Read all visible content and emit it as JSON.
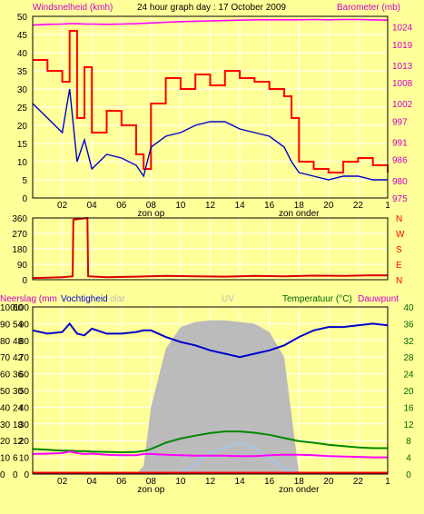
{
  "title": "24 hour graph day : 17 October 2009",
  "colors": {
    "background": "#ffff99",
    "grid": "#ffffff",
    "wind": "#ff0000",
    "wind_lower": "#0000cc",
    "barometer": "#ff00ff",
    "direction": "#dd0000",
    "rain": "#ff0000",
    "humidity": "#0000cc",
    "solar_uv": "#bbbbbb",
    "temperature": "#008800",
    "dewpoint": "#ff00ff",
    "uv": "#99ccff",
    "axis_text": "#000000",
    "green_text": "#006600",
    "magenta_text": "#cc00cc"
  },
  "x_ticks": [
    "02",
    "04",
    "06",
    "08",
    "10",
    "12",
    "14",
    "16",
    "18",
    "20",
    "22",
    "1"
  ],
  "zon_op_label": "zon op",
  "zon_onder_label": "zon onder",
  "chart_data": [
    {
      "type": "line",
      "name": "wind-barometer",
      "ylabel_left": "Windsnelheid (kmh)",
      "ylabel_right": "Barometer (mb)",
      "left_ticks": [
        "0",
        "5",
        "10",
        "15",
        "20",
        "25",
        "30",
        "35",
        "40",
        "45",
        "50"
      ],
      "right_ticks": [
        "975",
        "980",
        "986",
        "991",
        "997",
        "1002",
        "1008",
        "1013",
        "1019",
        "1024"
      ],
      "ylim_left": [
        0,
        50
      ],
      "ylim_right": [
        975,
        1027
      ],
      "x": [
        0,
        1,
        2,
        2.5,
        3,
        3.5,
        4,
        5,
        6,
        7,
        7.5,
        8,
        9,
        10,
        11,
        12,
        13,
        14,
        15,
        16,
        17,
        17.5,
        18,
        19,
        20,
        21,
        22,
        23,
        24
      ],
      "series": [
        {
          "name": "Windsnelheid (kmh)",
          "values": [
            38,
            35,
            32,
            46,
            22,
            36,
            18,
            24,
            20,
            12,
            8,
            26,
            33,
            30,
            34,
            31,
            35,
            33,
            32,
            30,
            28,
            22,
            10,
            8,
            7,
            10,
            11,
            9,
            7
          ]
        },
        {
          "name": "",
          "values": [
            26,
            22,
            18,
            30,
            10,
            16,
            8,
            12,
            11,
            9,
            6,
            14,
            17,
            18,
            20,
            21,
            21,
            19,
            18,
            17,
            14,
            10,
            7,
            6,
            5,
            6,
            6,
            5,
            5
          ]
        },
        {
          "name": "Barometer (mb)",
          "values": [
            1024.5,
            1024.7,
            1024.8,
            1024.9,
            1024.9,
            1024.8,
            1024.8,
            1024.7,
            1024.8,
            1024.9,
            1025.0,
            1025.1,
            1025.3,
            1025.5,
            1025.6,
            1025.7,
            1025.8,
            1025.9,
            1026.0,
            1026.0,
            1026.0,
            1026.0,
            1026.0,
            1026.1,
            1026.0,
            1026.1,
            1026.1,
            1026.0,
            1025.9
          ]
        }
      ]
    },
    {
      "type": "line",
      "name": "wind-direction",
      "left_ticks": [
        "0",
        "90",
        "180",
        "270",
        "360"
      ],
      "right_ticks": [
        "N",
        "E",
        "S",
        "W",
        "N"
      ],
      "ylim": [
        0,
        360
      ],
      "x": [
        0,
        1,
        2,
        2.7,
        2.75,
        3.7,
        3.75,
        5,
        7,
        9,
        11,
        13,
        15,
        17,
        19,
        21,
        23,
        24
      ],
      "values": [
        10,
        12,
        15,
        20,
        350,
        360,
        20,
        15,
        18,
        22,
        20,
        18,
        22,
        20,
        24,
        22,
        26,
        25
      ]
    },
    {
      "type": "line",
      "name": "rain-humidity-temperature",
      "ylabel_left": "Neerslag (mm",
      "ylabel_left2": "Vochtigheid",
      "label_solar": "olar",
      "label_uv": "UV",
      "ylabel_right": "Temperatuur (°C)",
      "ylabel_right2": "Dauwpunt",
      "left_ticks_a": [
        "0",
        "10",
        "20",
        "30",
        "40",
        "50",
        "60",
        "70",
        "80",
        "90",
        "100"
      ],
      "left_ticks_b": [
        "0",
        "6",
        "12",
        "18",
        "24",
        "30",
        "36",
        "42",
        "48",
        "54",
        "60"
      ],
      "left_ticks_c": [
        "0",
        "10",
        "20",
        "30",
        "40",
        "50",
        "60",
        "70",
        "80",
        "90",
        "100"
      ],
      "right_ticks": [
        "0",
        "4",
        "8",
        "12",
        "16",
        "20",
        "24",
        "28",
        "32",
        "36",
        "40"
      ],
      "ylim_humidity": [
        0,
        100
      ],
      "ylim_temperature": [
        0,
        40
      ],
      "x": [
        0,
        1,
        2,
        2.5,
        3,
        3.5,
        4,
        5,
        6,
        7,
        7.5,
        8,
        9,
        10,
        11,
        12,
        13,
        14,
        15,
        16,
        17,
        18,
        19,
        20,
        21,
        22,
        23,
        24
      ],
      "series": [
        {
          "name": "Vochtigheid",
          "values": [
            86,
            84,
            85,
            90,
            84,
            83,
            87,
            84,
            84,
            85,
            86,
            86,
            82,
            79,
            77,
            74,
            72,
            70,
            72,
            74,
            77,
            82,
            86,
            88,
            88,
            89,
            90,
            89
          ]
        },
        {
          "name": "Temperatuur (°C)",
          "values": [
            6.0,
            5.8,
            5.6,
            5.6,
            5.5,
            5.5,
            5.4,
            5.3,
            5.2,
            5.3,
            5.5,
            6.0,
            7.5,
            8.5,
            9.2,
            9.8,
            10.2,
            10.2,
            9.9,
            9.4,
            8.6,
            7.9,
            7.5,
            7.0,
            6.7,
            6.4,
            6.2,
            6.2
          ]
        },
        {
          "name": "Dauwpunt",
          "values": [
            4.8,
            4.9,
            5.0,
            5.4,
            5.0,
            4.8,
            4.9,
            4.6,
            4.5,
            4.5,
            4.8,
            4.8,
            4.6,
            4.5,
            4.4,
            4.4,
            4.4,
            4.3,
            4.3,
            4.5,
            4.6,
            4.6,
            4.5,
            4.3,
            4.2,
            4.1,
            4.0,
            4.0
          ]
        },
        {
          "name": "UV",
          "values": [
            0,
            0,
            0,
            0,
            0,
            0,
            0,
            0,
            0,
            0,
            0,
            0,
            0,
            0.1,
            1,
            2,
            2.5,
            3,
            2.5,
            1.5,
            0.5,
            0,
            0,
            0,
            0,
            0,
            0,
            0
          ]
        },
        {
          "name": "Solar",
          "values": [
            0,
            0,
            0,
            0,
            0,
            0,
            0,
            0,
            0,
            0,
            5,
            40,
            75,
            88,
            91,
            92,
            92,
            91,
            90,
            85,
            70,
            0,
            0,
            0,
            0,
            0,
            0,
            0
          ]
        },
        {
          "name": "Neerslag",
          "values": [
            0,
            0,
            0,
            0,
            0,
            0,
            0,
            0,
            0,
            0,
            0,
            0,
            0,
            0,
            0,
            0,
            0,
            0,
            0,
            0,
            0,
            0,
            0,
            0,
            0,
            0,
            0,
            0
          ]
        }
      ]
    }
  ]
}
